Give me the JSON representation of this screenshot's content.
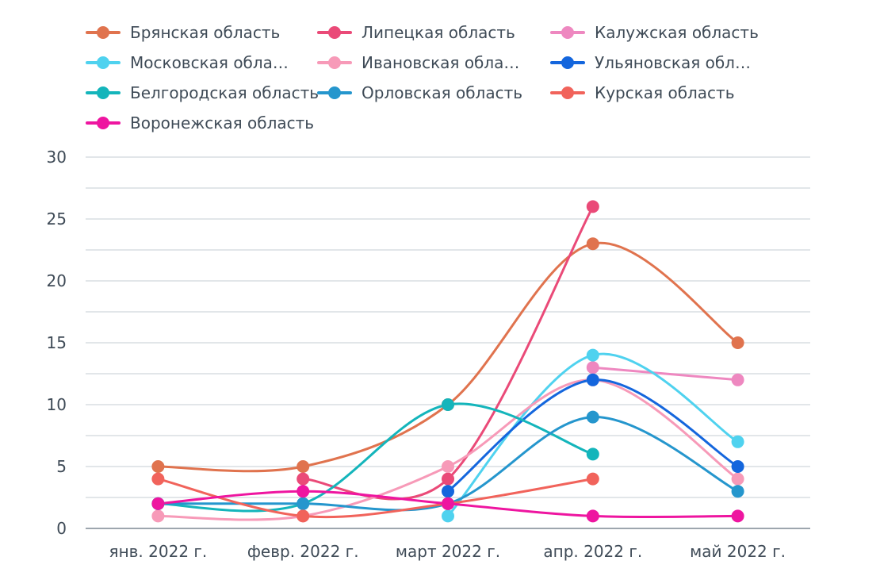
{
  "chart_data": {
    "type": "line",
    "categories": [
      "янв. 2022 г.",
      "февр. 2022 г.",
      "март 2022 г.",
      "апр. 2022 г.",
      "май 2022 г."
    ],
    "ylim": [
      0,
      30
    ],
    "yticks": [
      "0",
      "5",
      "10",
      "15",
      "20",
      "25",
      "30"
    ],
    "ytick_values": [
      0,
      5,
      10,
      15,
      20,
      25,
      30
    ],
    "grid": true,
    "legend_position": "top",
    "series": [
      {
        "name": "Брянская область",
        "color": "#e0734e",
        "values": [
          5,
          5,
          10,
          23,
          15
        ]
      },
      {
        "name": "Липецкая область",
        "color": "#ea4a78",
        "values": [
          null,
          4,
          4,
          26,
          null
        ]
      },
      {
        "name": "Калужская область",
        "color": "#ee88c0",
        "values": [
          null,
          null,
          null,
          13,
          12
        ]
      },
      {
        "name": "Московская обла…",
        "color": "#4fd2ef",
        "values": [
          null,
          null,
          1,
          14,
          7
        ]
      },
      {
        "name": "Ивановская обла…",
        "color": "#f79ab8",
        "values": [
          1,
          1,
          5,
          12,
          4
        ]
      },
      {
        "name": "Ульяновская обл…",
        "color": "#1466dd",
        "values": [
          null,
          null,
          3,
          12,
          5
        ]
      },
      {
        "name": "Белгородская область",
        "color": "#14b5bb",
        "values": [
          2,
          2,
          10,
          6,
          null
        ]
      },
      {
        "name": "Орловская область",
        "color": "#2596cd",
        "values": [
          2,
          2,
          2,
          9,
          3
        ]
      },
      {
        "name": "Курская область",
        "color": "#f1635b",
        "values": [
          4,
          1,
          2,
          4,
          null
        ]
      },
      {
        "name": "Воронежская область",
        "color": "#ee15a0",
        "values": [
          2,
          3,
          2,
          1,
          1
        ]
      }
    ]
  }
}
